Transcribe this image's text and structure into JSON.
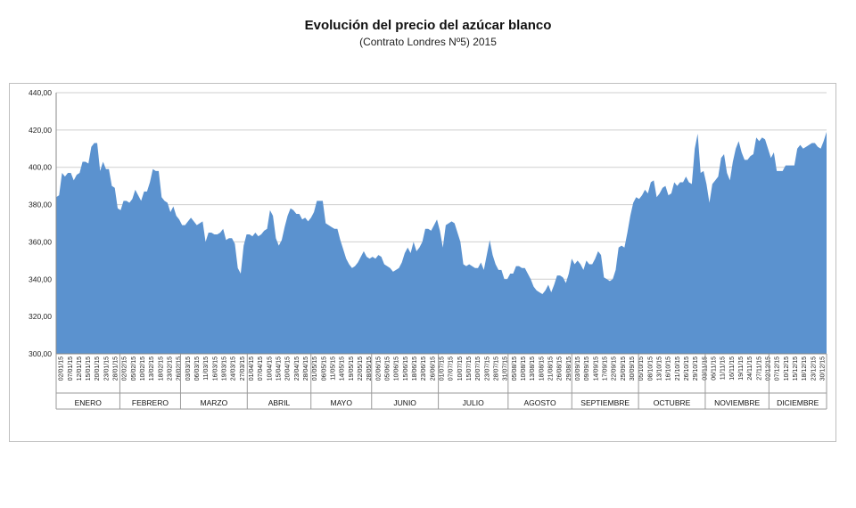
{
  "chart_data": {
    "type": "area",
    "title": "Evolución del precio del azúcar blanco",
    "subtitle": "(Contrato Londres Nº5) 2015",
    "ylim": [
      300,
      440
    ],
    "yticks": [
      "300,00",
      "320,00",
      "340,00",
      "360,00",
      "380,00",
      "400,00",
      "420,00",
      "440,00"
    ],
    "grid": true,
    "color": "#5b92cf",
    "series": [
      {
        "values": [
          384,
          385,
          397,
          395,
          397,
          397,
          393,
          396,
          397,
          403,
          403,
          402,
          411,
          413,
          413,
          398,
          403,
          399,
          399,
          390,
          389,
          378,
          377,
          382,
          382,
          381,
          383,
          388,
          385,
          382,
          387,
          387,
          392,
          399,
          398,
          398,
          384,
          382,
          381,
          376,
          379,
          374,
          372,
          369,
          369,
          371,
          373,
          371,
          369,
          370,
          371,
          360,
          365,
          365,
          364,
          364,
          365,
          367,
          361,
          362,
          362,
          359,
          346,
          343,
          358,
          364,
          364,
          363,
          365,
          363,
          364,
          366,
          367,
          377,
          374,
          362,
          358,
          361,
          368,
          374,
          378,
          377,
          375,
          375,
          372,
          373,
          371,
          373,
          376,
          382,
          382,
          382,
          370,
          369,
          368,
          367,
          367,
          361,
          356,
          351,
          348,
          346,
          347,
          349,
          352,
          355,
          352,
          351,
          352,
          351,
          353,
          352,
          348,
          347,
          346,
          344,
          345,
          346,
          349,
          354,
          357,
          354,
          360,
          355,
          357,
          360,
          367,
          367,
          366,
          369,
          372,
          366,
          357,
          369,
          370,
          371,
          370,
          365,
          360,
          348,
          347,
          348,
          347,
          346,
          346,
          349,
          345,
          353,
          361,
          353,
          348,
          345,
          345,
          340,
          340,
          343,
          343,
          347,
          347,
          346,
          346,
          343,
          340,
          336,
          334,
          333,
          332,
          334,
          337,
          333,
          337,
          342,
          342,
          341,
          338,
          343,
          351,
          348,
          350,
          348,
          345,
          350,
          348,
          348,
          351,
          355,
          353,
          341,
          340,
          339,
          340,
          345,
          357,
          358,
          357,
          365,
          374,
          381,
          384,
          383,
          385,
          388,
          386,
          392,
          393,
          384,
          386,
          389,
          390,
          385,
          386,
          392,
          390,
          392,
          392,
          395,
          392,
          391,
          410,
          418,
          397,
          398,
          391,
          381,
          391,
          393,
          395,
          405,
          407,
          397,
          393,
          403,
          410,
          414,
          408,
          404,
          404,
          406,
          407,
          416,
          414,
          416,
          415,
          410,
          405,
          408,
          398,
          398,
          398,
          401,
          401,
          401,
          401,
          410,
          412,
          410,
          411,
          412,
          413,
          413,
          411,
          410,
          414,
          419
        ]
      }
    ],
    "date_labels": [
      "02/01/15",
      "07/01/15",
      "12/01/15",
      "15/01/15",
      "20/01/15",
      "23/01/15",
      "28/01/15",
      "02/02/15",
      "05/02/15",
      "10/02/15",
      "13/02/15",
      "18/02/15",
      "23/02/15",
      "26/02/15",
      "03/03/15",
      "06/03/15",
      "11/03/15",
      "16/03/15",
      "19/03/15",
      "24/03/15",
      "27/03/15",
      "01/04/15",
      "07/04/15",
      "10/04/15",
      "15/04/15",
      "20/04/15",
      "23/04/15",
      "28/04/15",
      "01/05/15",
      "06/05/15",
      "11/05/15",
      "14/05/15",
      "19/05/15",
      "22/05/15",
      "28/05/15",
      "02/06/15",
      "05/06/15",
      "10/06/15",
      "15/06/15",
      "18/06/15",
      "23/06/15",
      "26/06/15",
      "01/07/15",
      "07/07/15",
      "10/07/15",
      "15/07/15",
      "20/07/15",
      "23/07/15",
      "28/07/15",
      "31/07/15",
      "05/08/15",
      "10/08/15",
      "13/08/15",
      "18/08/15",
      "21/08/15",
      "26/08/15",
      "29/08/15",
      "03/09/15",
      "09/09/15",
      "14/09/15",
      "17/09/15",
      "22/09/15",
      "25/09/15",
      "30/09/15",
      "05/10/15",
      "08/10/15",
      "13/10/15",
      "16/10/15",
      "21/10/15",
      "26/10/15",
      "29/10/15",
      "03/11/15",
      "06/11/15",
      "11/11/15",
      "16/11/15",
      "19/11/15",
      "24/11/15",
      "27/11/15",
      "02/12/15",
      "07/12/15",
      "10/12/15",
      "15/12/15",
      "18/12/15",
      "23/12/15",
      "30/12/15"
    ],
    "months": [
      "ENERO",
      "FEBRERO",
      "MARZO",
      "ABRIL",
      "MAYO",
      "JUNIO",
      "JULIO",
      "AGOSTO",
      "SEPTIEMBRE",
      "OCTUBRE",
      "NOVIEMBRE",
      "DICIEMBRE"
    ],
    "month_spans": [
      21,
      20,
      22,
      21,
      20,
      22,
      23,
      21,
      22,
      22,
      21,
      19
    ]
  }
}
